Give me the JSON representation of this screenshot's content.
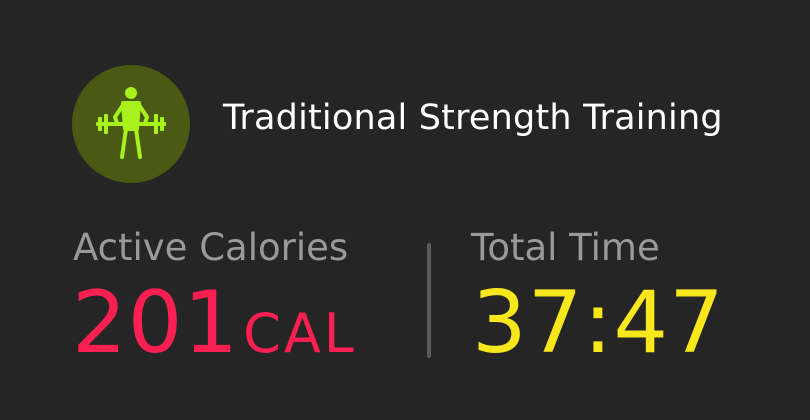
{
  "workout": {
    "title": "Traditional Strength Training",
    "icon": "weightlifter-icon",
    "icon_color": "#a7f21a",
    "icon_bg": "#4a5a14"
  },
  "metrics": {
    "calories": {
      "label": "Active Calories",
      "value": "201",
      "unit": "CAL",
      "color": "#fb1f52"
    },
    "time": {
      "label": "Total Time",
      "value": "37:47",
      "color": "#f8e71c"
    }
  }
}
